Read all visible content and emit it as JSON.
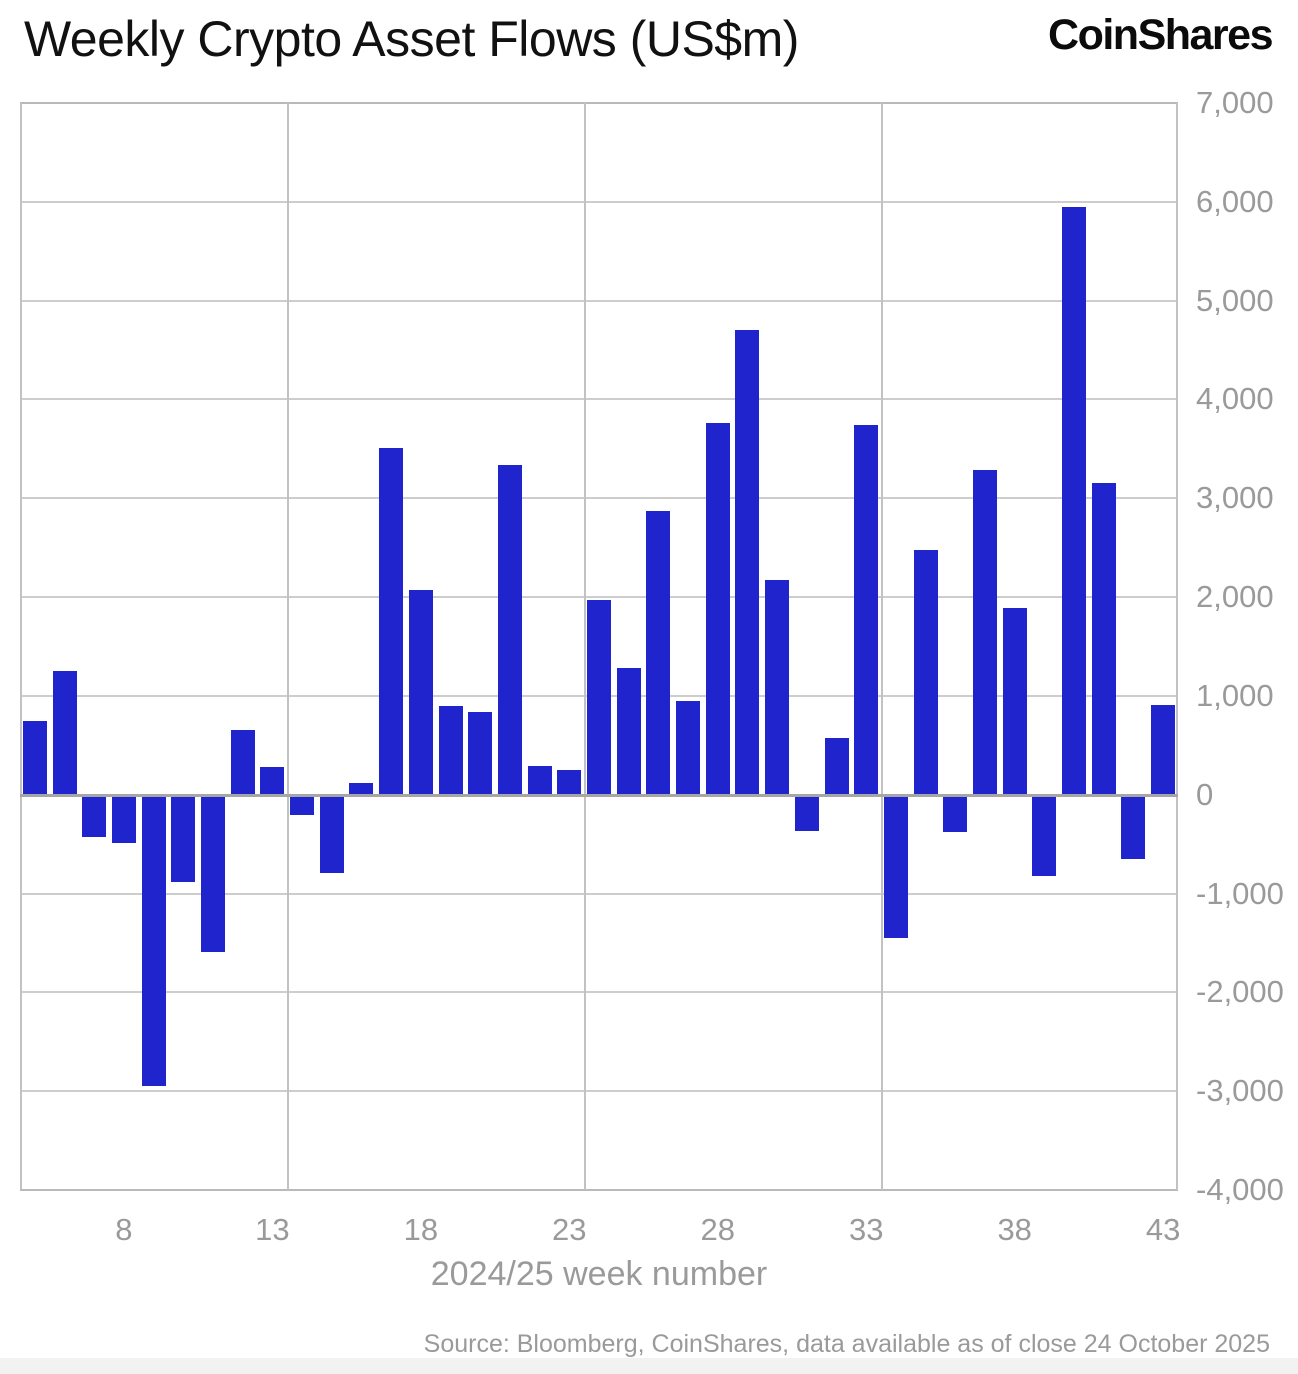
{
  "title": "Weekly Crypto Asset Flows (US$m)",
  "logo": "CoinShares",
  "source": "Source: Bloomberg, CoinShares, data available as of close 24 October 2025",
  "colors": {
    "bar": "#2024cd",
    "grid": "#cdcdcd",
    "zero_line": "#a6a6a6",
    "tick_label": "#9a9a9a",
    "title_text": "#111111",
    "footer_bg": "#f2f2f2"
  },
  "chart_data": {
    "type": "bar",
    "title": "Weekly Crypto Asset Flows (US$m)",
    "xlabel": "2024/25 week number",
    "ylabel": "",
    "weeks": [
      5,
      6,
      7,
      8,
      9,
      10,
      11,
      12,
      13,
      14,
      15,
      16,
      17,
      18,
      19,
      20,
      21,
      22,
      23,
      24,
      25,
      26,
      27,
      28,
      29,
      30,
      31,
      32,
      33,
      34,
      35,
      36,
      37,
      38,
      39,
      40,
      41,
      42,
      43
    ],
    "values": [
      750,
      1250,
      -420,
      -480,
      -2940,
      -870,
      -1580,
      650,
      280,
      -200,
      -780,
      115,
      3510,
      2070,
      900,
      840,
      3340,
      295,
      250,
      1970,
      1280,
      2870,
      950,
      3760,
      4700,
      2170,
      -360,
      570,
      3740,
      -1440,
      2480,
      -365,
      3290,
      1890,
      -815,
      5950,
      3150,
      -640,
      905
    ],
    "ylim": [
      -4000,
      7000
    ],
    "ytick_step": 1000,
    "xticks": [
      8,
      13,
      18,
      23,
      28,
      33,
      38,
      43
    ],
    "vgrid_after_weeks": [
      13,
      23,
      33
    ],
    "grid": true,
    "legend": "none",
    "bar_color": "#2024cd"
  }
}
